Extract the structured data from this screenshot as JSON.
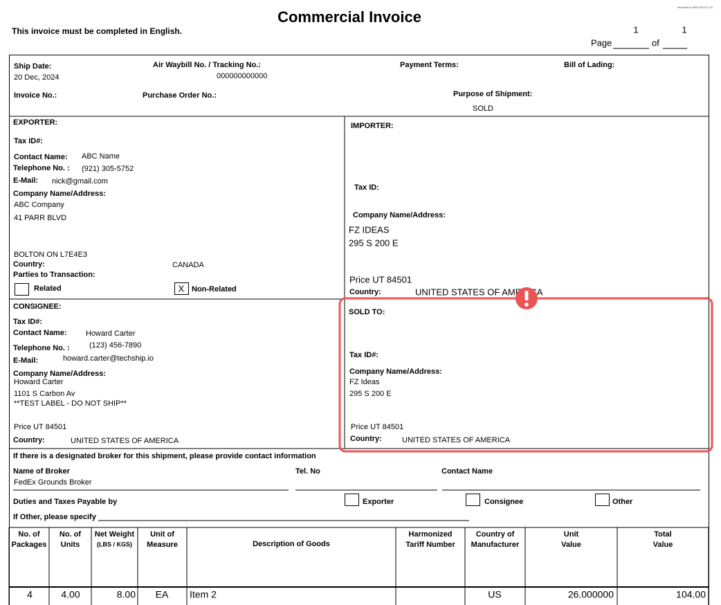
{
  "header": {
    "title": "Commercial Invoice",
    "note": "This invoice must be completed in English.",
    "version": "Version/Ind 2560 2023.07.20",
    "page_label": "Page",
    "of_label": "of",
    "page_current": "1",
    "page_total": "1"
  },
  "shipment": {
    "ship_date_label": "Ship Date:",
    "ship_date": "20 Dec, 2024",
    "awb_label": "Air Waybill No. / Tracking No.:",
    "awb": "000000000000",
    "payment_terms_label": "Payment Terms:",
    "bill_of_lading_label": "Bill of Lading:",
    "invoice_no_label": "Invoice No.:",
    "po_label": "Purchase Order No.:",
    "purpose_label": "Purpose of Shipment:",
    "purpose": "SOLD"
  },
  "exporter": {
    "heading": "EXPORTER:",
    "tax_id_label": "Tax ID#:",
    "contact_label": "Contact Name:",
    "contact": "ABC Name",
    "phone_label": "Telephone No. :",
    "phone": "(921) 305-5752",
    "email_label": "E-Mail:",
    "email": "nick@gmail.com",
    "company_label": "Company Name/Address:",
    "company": "ABC Company",
    "address": "41 PARR BLVD",
    "city": "BOLTON ON L7E4E3",
    "country_label": "Country:",
    "country": "CANADA",
    "parties_label": "Parties to Transaction:",
    "related": "Related",
    "non_related": "Non-Related",
    "mark": "X"
  },
  "importer": {
    "heading": "IMPORTER:",
    "tax_id_label": "Tax ID:",
    "company_label": "Company Name/Address:",
    "company": "FZ IDEAS",
    "address": "295 S 200 E",
    "city": "Price UT 84501",
    "country_label": "Country:",
    "country": "UNITED STATES OF AMERICA"
  },
  "consignee": {
    "heading": "CONSIGNEE:",
    "tax_id_label": "Tax ID#:",
    "contact_label": "Contact Name:",
    "contact": "Howard Carter",
    "phone_label": "Telephone No. :",
    "phone": "(123) 456-7890",
    "email_label": "E-Mail:",
    "email": "howard.carter@techship.io",
    "company_label": "Company Name/Address:",
    "company": "Howard Carter",
    "address": "1101 S Carbon Av",
    "address2": "**TEST LABEL - DO NOT SHIP**",
    "city": "Price UT 84501",
    "country_label": "Country:",
    "country": "UNITED STATES OF AMERICA"
  },
  "sold_to": {
    "heading": "SOLD TO:",
    "tax_id_label": "Tax ID#:",
    "company_label": "Company Name/Address:",
    "company": "FZ Ideas",
    "address": "295 S 200 E",
    "city": "Price UT 84501",
    "country_label": "Country:",
    "country": "UNITED STATES OF AMERICA"
  },
  "broker": {
    "note": "If there is a designated broker for this shipment, please provide contact information",
    "name_label": "Name of Broker",
    "name": "FedEx Grounds Broker",
    "tel_label": "Tel. No",
    "contact_label": "Contact Name",
    "duties_label": "Duties and Taxes Payable by",
    "option_exporter": "Exporter",
    "option_consignee": "Consignee",
    "option_other": "Other",
    "other_label": "If Other, please specify"
  },
  "table": {
    "columns": [
      [
        "No. of",
        "Packages"
      ],
      [
        "No. of",
        "Units"
      ],
      [
        "Net Weight",
        "(LBS / KGS)"
      ],
      [
        "Unit of",
        "Measure"
      ],
      [
        "Description of Goods"
      ],
      [
        "Harmonized",
        "Tariff Number"
      ],
      [
        "Country of",
        "Manufacturer"
      ],
      [
        "Unit",
        "Value"
      ],
      [
        "Total",
        "Value"
      ]
    ],
    "rows": [
      {
        "packages": "4",
        "units": "4.00",
        "weight": "8.00",
        "uom": "EA",
        "description": "Item 2",
        "country": "US",
        "unit_value": "26.000000",
        "total_value": "104.00"
      }
    ]
  }
}
